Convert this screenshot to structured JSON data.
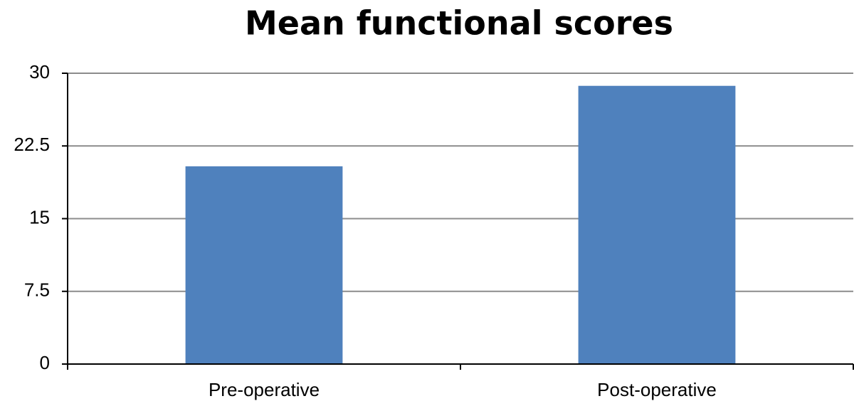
{
  "chart_data": {
    "type": "bar",
    "title": "Mean functional scores",
    "categories": [
      "Pre-operative",
      "Post-operative"
    ],
    "values": [
      20.4,
      28.7
    ],
    "color": "#4f81bd",
    "ylim": [
      0,
      30
    ],
    "yticks": [
      0,
      7.5,
      15,
      22.5,
      30
    ],
    "grid": true
  }
}
